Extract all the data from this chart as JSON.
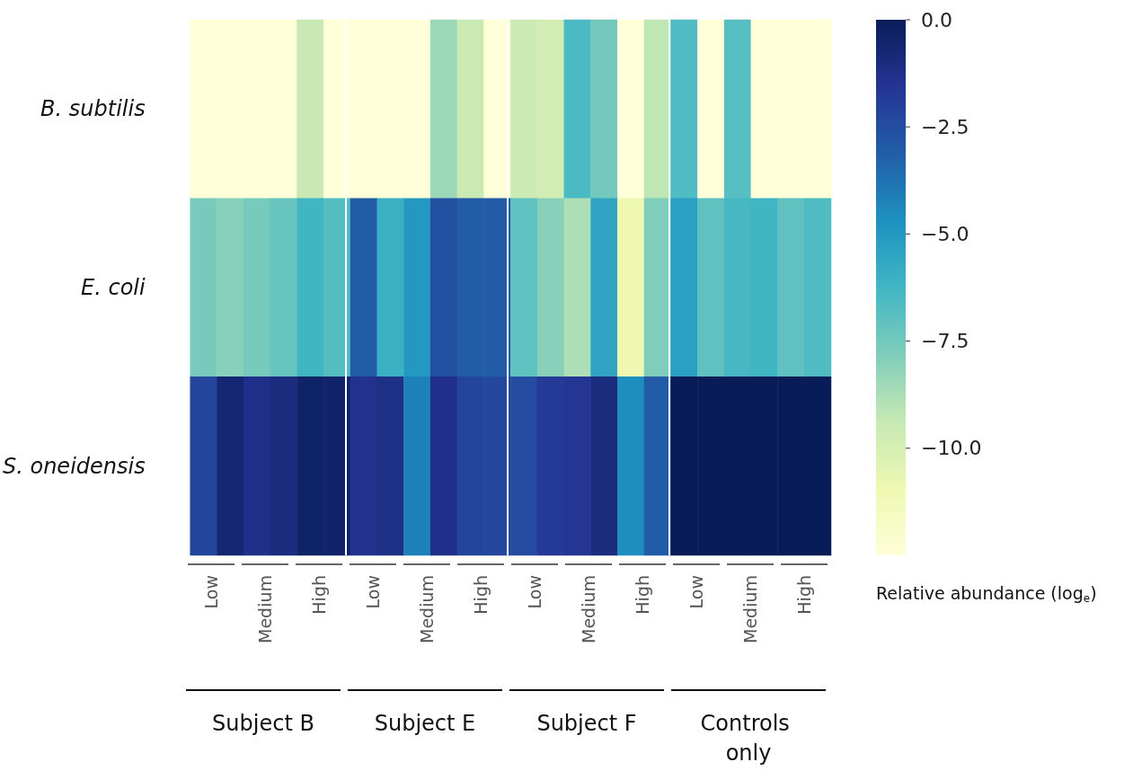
{
  "chart_data": {
    "type": "heatmap",
    "categories": [
      "Low",
      null,
      "Medium",
      null,
      "High",
      null,
      "Low",
      null,
      "Medium",
      null,
      "High",
      null,
      "Low",
      null,
      "Medium",
      null,
      "High",
      null,
      "Low",
      null,
      "Medium",
      null,
      "High",
      null
    ],
    "y_categories": [
      "B. subtilis",
      "E. coli",
      "S. oneidensis"
    ],
    "annotations": [
      "Subject B",
      "Subject E",
      "Subject F",
      "Controls only"
    ],
    "cells": [
      [
        -12.5,
        -12.5,
        -12.5,
        -12.5,
        -9.4,
        -12.5,
        -12.5,
        -12.5,
        -12.5,
        -8.4,
        -9.5,
        -12.5,
        -9.6,
        -9.8,
        -6.5,
        -7.5,
        -12.5,
        -9.2,
        -6.6,
        -12.5,
        -6.8,
        -12.5,
        -12.5,
        -12.5
      ],
      [
        -7.6,
        -8.0,
        -7.6,
        -7.2,
        -6.2,
        -6.7,
        -3.0,
        -6.0,
        -5.0,
        -2.6,
        -3.0,
        -3.0,
        -7.0,
        -8.0,
        -8.8,
        -5.5,
        -11.0,
        -7.8,
        -5.3,
        -7.0,
        -6.4,
        -6.2,
        -7.0,
        -6.6
      ],
      [
        -2.2,
        -0.7,
        -1.3,
        -1.0,
        -0.4,
        -0.5,
        -1.4,
        -1.2,
        -4.2,
        -1.3,
        -2.2,
        -2.3,
        -2.4,
        -1.8,
        -1.6,
        -1.0,
        -4.6,
        -3.0,
        0.0,
        0.0,
        0.0,
        0.0,
        0.0,
        0.0
      ]
    ],
    "clabel": "Relative abundance (log$_{e}$)",
    "clim": [
      -12.5,
      0
    ],
    "cticks": [
      {
        "value": 0,
        "label": "0.0"
      },
      {
        "value": -2.5,
        "label": "−2.5"
      },
      {
        "value": -5,
        "label": "−5.0"
      },
      {
        "value": -7.5,
        "label": "−7.5"
      },
      {
        "value": -10,
        "label": "−10.0"
      }
    ]
  }
}
